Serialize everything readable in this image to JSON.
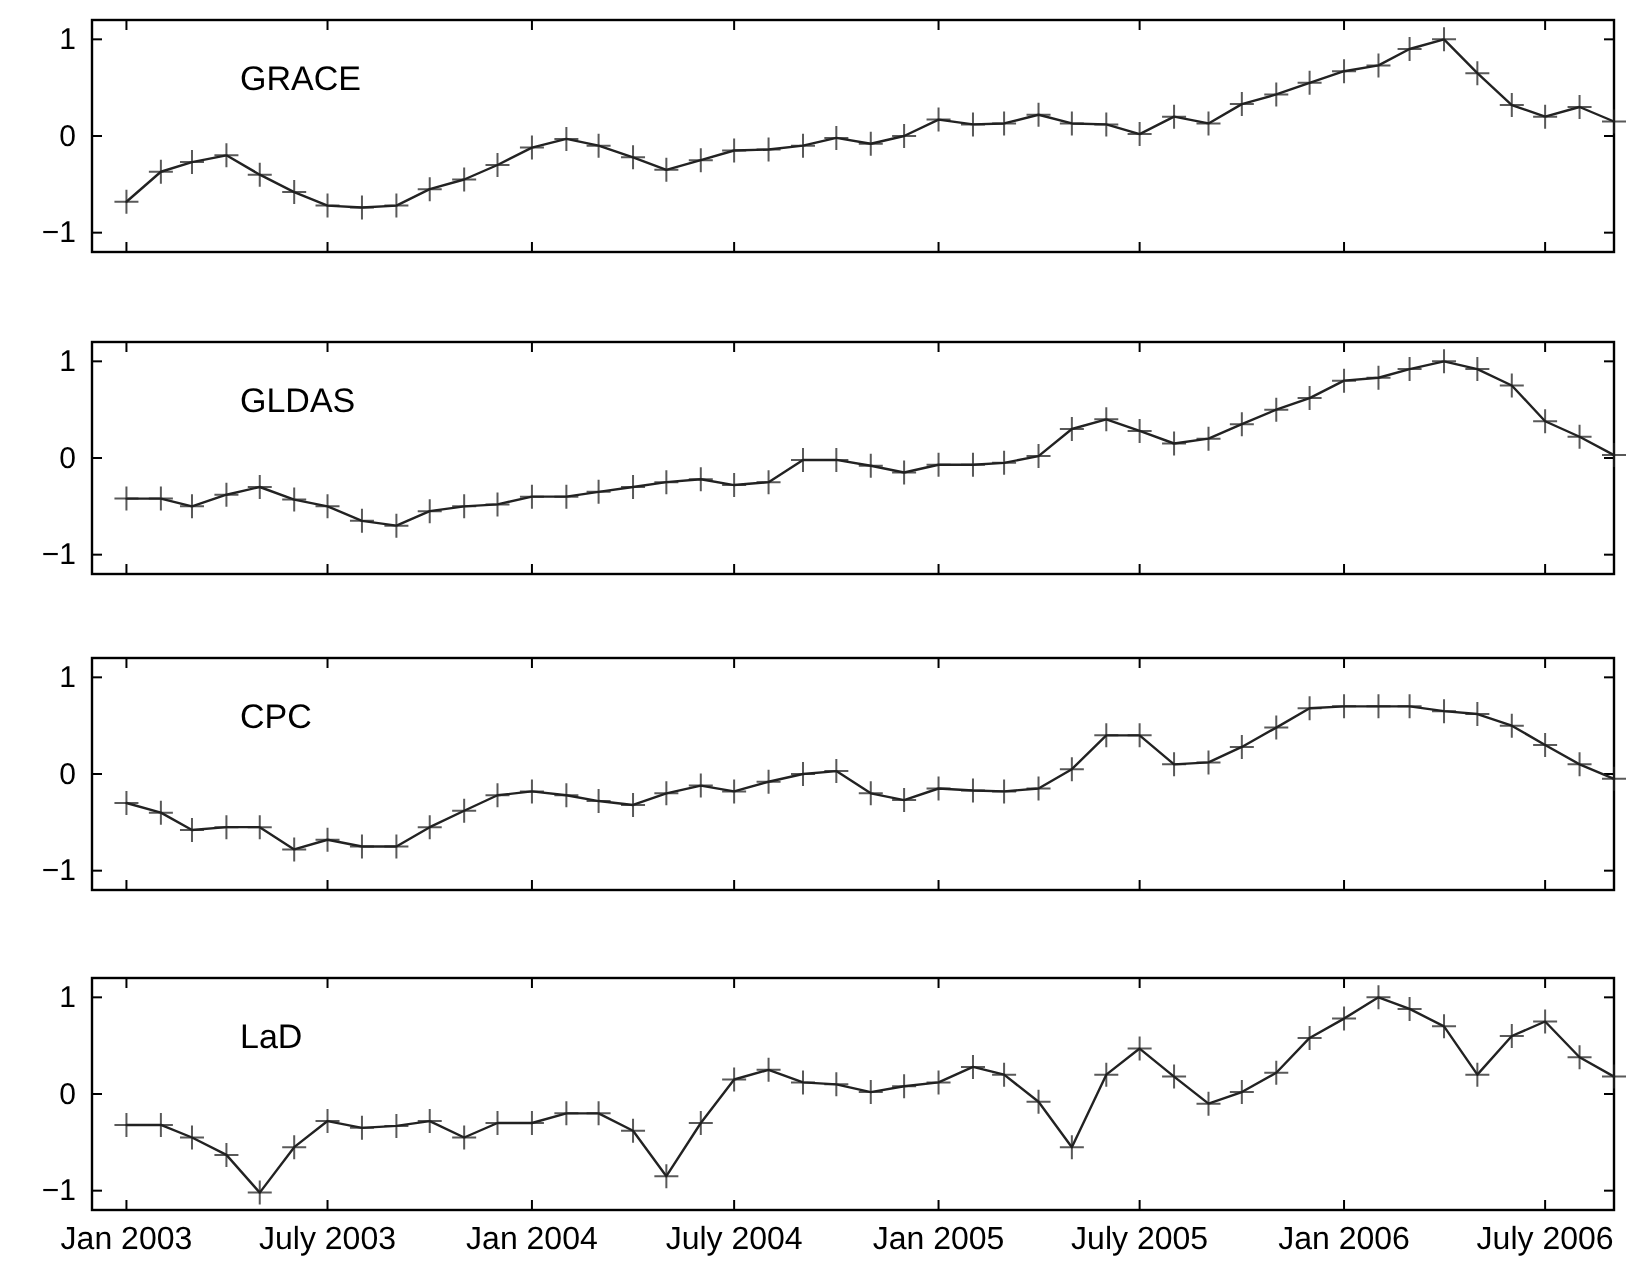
{
  "chart_data": [
    {
      "type": "line",
      "marker": "cross",
      "grid": false,
      "tick_labels": "y",
      "x": [
        "2003-01",
        "2003-02",
        "2003-03",
        "2003-04",
        "2003-05",
        "2003-06",
        "2003-07",
        "2003-08",
        "2003-09",
        "2003-10",
        "2003-11",
        "2003-12",
        "2004-01",
        "2004-02",
        "2004-03",
        "2004-04",
        "2004-05",
        "2004-06",
        "2004-07",
        "2004-08",
        "2004-09",
        "2004-10",
        "2004-11",
        "2004-12",
        "2005-01",
        "2005-02",
        "2005-03",
        "2005-04",
        "2005-05",
        "2005-06",
        "2005-07",
        "2005-08",
        "2005-09",
        "2005-10",
        "2005-11",
        "2005-12",
        "2006-01",
        "2006-02",
        "2006-03",
        "2006-04",
        "2006-05",
        "2006-06",
        "2006-07",
        "2006-08",
        "2006-09"
      ],
      "xlim": [
        "2002-12",
        "2006-09"
      ],
      "xticks": [
        {
          "value": "2003-01",
          "label": null
        },
        {
          "value": "2003-07",
          "label": null
        },
        {
          "value": "2004-01",
          "label": null
        },
        {
          "value": "2004-07",
          "label": null
        },
        {
          "value": "2005-01",
          "label": null
        },
        {
          "value": "2005-07",
          "label": null
        },
        {
          "value": "2006-01",
          "label": null
        },
        {
          "value": "2006-07",
          "label": null
        }
      ],
      "ylim": [
        -1.2,
        1.2
      ],
      "yticks": [
        -1,
        0,
        1
      ],
      "series": [
        {
          "name": "GRACE",
          "color": "#222222",
          "values": [
            -0.68,
            -0.37,
            -0.27,
            -0.2,
            -0.4,
            -0.58,
            -0.72,
            -0.74,
            -0.72,
            -0.55,
            -0.45,
            -0.3,
            -0.12,
            -0.03,
            -0.1,
            -0.22,
            -0.35,
            -0.25,
            -0.15,
            -0.14,
            -0.1,
            -0.02,
            -0.08,
            0.0,
            0.17,
            0.12,
            0.13,
            0.22,
            0.13,
            0.12,
            0.02,
            0.2,
            0.13,
            0.33,
            0.43,
            0.55,
            0.67,
            0.73,
            0.9,
            1.0,
            0.65,
            0.32,
            0.2,
            0.3,
            0.15
          ]
        }
      ]
    },
    {
      "type": "line",
      "marker": "cross",
      "grid": false,
      "tick_labels": "y",
      "x": [
        "2003-01",
        "2003-02",
        "2003-03",
        "2003-04",
        "2003-05",
        "2003-06",
        "2003-07",
        "2003-08",
        "2003-09",
        "2003-10",
        "2003-11",
        "2003-12",
        "2004-01",
        "2004-02",
        "2004-03",
        "2004-04",
        "2004-05",
        "2004-06",
        "2004-07",
        "2004-08",
        "2004-09",
        "2004-10",
        "2004-11",
        "2004-12",
        "2005-01",
        "2005-02",
        "2005-03",
        "2005-04",
        "2005-05",
        "2005-06",
        "2005-07",
        "2005-08",
        "2005-09",
        "2005-10",
        "2005-11",
        "2005-12",
        "2006-01",
        "2006-02",
        "2006-03",
        "2006-04",
        "2006-05",
        "2006-06",
        "2006-07",
        "2006-08",
        "2006-09"
      ],
      "xlim": [
        "2002-12",
        "2006-09"
      ],
      "xticks": [
        {
          "value": "2003-01",
          "label": null
        },
        {
          "value": "2003-07",
          "label": null
        },
        {
          "value": "2004-01",
          "label": null
        },
        {
          "value": "2004-07",
          "label": null
        },
        {
          "value": "2005-01",
          "label": null
        },
        {
          "value": "2005-07",
          "label": null
        },
        {
          "value": "2006-01",
          "label": null
        },
        {
          "value": "2006-07",
          "label": null
        }
      ],
      "ylim": [
        -1.2,
        1.2
      ],
      "yticks": [
        -1,
        0,
        1
      ],
      "series": [
        {
          "name": "GLDAS",
          "color": "#222222",
          "values": [
            -0.42,
            -0.42,
            -0.5,
            -0.38,
            -0.3,
            -0.43,
            -0.5,
            -0.65,
            -0.7,
            -0.55,
            -0.5,
            -0.48,
            -0.4,
            -0.4,
            -0.35,
            -0.3,
            -0.25,
            -0.22,
            -0.28,
            -0.25,
            -0.02,
            -0.02,
            -0.08,
            -0.15,
            -0.07,
            -0.07,
            -0.05,
            0.02,
            0.3,
            0.4,
            0.28,
            0.15,
            0.2,
            0.35,
            0.5,
            0.62,
            0.8,
            0.83,
            0.92,
            1.0,
            0.92,
            0.75,
            0.38,
            0.22,
            0.03
          ]
        }
      ]
    },
    {
      "type": "line",
      "marker": "cross",
      "grid": false,
      "tick_labels": "y",
      "x": [
        "2003-01",
        "2003-02",
        "2003-03",
        "2003-04",
        "2003-05",
        "2003-06",
        "2003-07",
        "2003-08",
        "2003-09",
        "2003-10",
        "2003-11",
        "2003-12",
        "2004-01",
        "2004-02",
        "2004-03",
        "2004-04",
        "2004-05",
        "2004-06",
        "2004-07",
        "2004-08",
        "2004-09",
        "2004-10",
        "2004-11",
        "2004-12",
        "2005-01",
        "2005-02",
        "2005-03",
        "2005-04",
        "2005-05",
        "2005-06",
        "2005-07",
        "2005-08",
        "2005-09",
        "2005-10",
        "2005-11",
        "2005-12",
        "2006-01",
        "2006-02",
        "2006-03",
        "2006-04",
        "2006-05",
        "2006-06",
        "2006-07",
        "2006-08",
        "2006-09"
      ],
      "xlim": [
        "2002-12",
        "2006-09"
      ],
      "xticks": [
        {
          "value": "2003-01",
          "label": null
        },
        {
          "value": "2003-07",
          "label": null
        },
        {
          "value": "2004-01",
          "label": null
        },
        {
          "value": "2004-07",
          "label": null
        },
        {
          "value": "2005-01",
          "label": null
        },
        {
          "value": "2005-07",
          "label": null
        },
        {
          "value": "2006-01",
          "label": null
        },
        {
          "value": "2006-07",
          "label": null
        }
      ],
      "ylim": [
        -1.2,
        1.2
      ],
      "yticks": [
        -1,
        0,
        1
      ],
      "series": [
        {
          "name": "CPC",
          "color": "#222222",
          "values": [
            -0.3,
            -0.4,
            -0.58,
            -0.55,
            -0.55,
            -0.78,
            -0.68,
            -0.75,
            -0.75,
            -0.55,
            -0.38,
            -0.22,
            -0.18,
            -0.22,
            -0.28,
            -0.32,
            -0.2,
            -0.12,
            -0.18,
            -0.08,
            0.0,
            0.03,
            -0.2,
            -0.27,
            -0.15,
            -0.17,
            -0.18,
            -0.15,
            0.05,
            0.4,
            0.4,
            0.1,
            0.12,
            0.28,
            0.48,
            0.68,
            0.7,
            0.7,
            0.7,
            0.65,
            0.62,
            0.5,
            0.3,
            0.1,
            -0.05
          ]
        }
      ]
    },
    {
      "type": "line",
      "marker": "cross",
      "grid": false,
      "x": [
        "2003-01",
        "2003-02",
        "2003-03",
        "2003-04",
        "2003-05",
        "2003-06",
        "2003-07",
        "2003-08",
        "2003-09",
        "2003-10",
        "2003-11",
        "2003-12",
        "2004-01",
        "2004-02",
        "2004-03",
        "2004-04",
        "2004-05",
        "2004-06",
        "2004-07",
        "2004-08",
        "2004-09",
        "2004-10",
        "2004-11",
        "2004-12",
        "2005-01",
        "2005-02",
        "2005-03",
        "2005-04",
        "2005-05",
        "2005-06",
        "2005-07",
        "2005-08",
        "2005-09",
        "2005-10",
        "2005-11",
        "2005-12",
        "2006-01",
        "2006-02",
        "2006-03",
        "2006-04",
        "2006-05",
        "2006-06",
        "2006-07",
        "2006-08",
        "2006-09"
      ],
      "xlim": [
        "2002-12",
        "2006-09"
      ],
      "xticks": [
        {
          "value": "2003-01",
          "label": "Jan 2003"
        },
        {
          "value": "2003-07",
          "label": "July 2003"
        },
        {
          "value": "2004-01",
          "label": "Jan 2004"
        },
        {
          "value": "2004-07",
          "label": "July 2004"
        },
        {
          "value": "2005-01",
          "label": "Jan 2005"
        },
        {
          "value": "2005-07",
          "label": "July 2005"
        },
        {
          "value": "2006-01",
          "label": "Jan 2006"
        },
        {
          "value": "2006-07",
          "label": "July 2006"
        }
      ],
      "ylim": [
        -1.2,
        1.2
      ],
      "yticks": [
        -1,
        0,
        1
      ],
      "series": [
        {
          "name": "LaD",
          "color": "#222222",
          "values": [
            -0.32,
            -0.32,
            -0.45,
            -0.63,
            -1.02,
            -0.55,
            -0.28,
            -0.35,
            -0.33,
            -0.28,
            -0.45,
            -0.3,
            -0.3,
            -0.2,
            -0.2,
            -0.38,
            -0.85,
            -0.3,
            0.15,
            0.25,
            0.12,
            0.1,
            0.02,
            0.08,
            0.12,
            0.28,
            0.2,
            -0.08,
            -0.55,
            0.2,
            0.47,
            0.18,
            -0.1,
            0.02,
            0.22,
            0.58,
            0.78,
            1.0,
            0.88,
            0.7,
            0.2,
            0.6,
            0.75,
            0.38,
            0.18
          ]
        }
      ]
    }
  ]
}
